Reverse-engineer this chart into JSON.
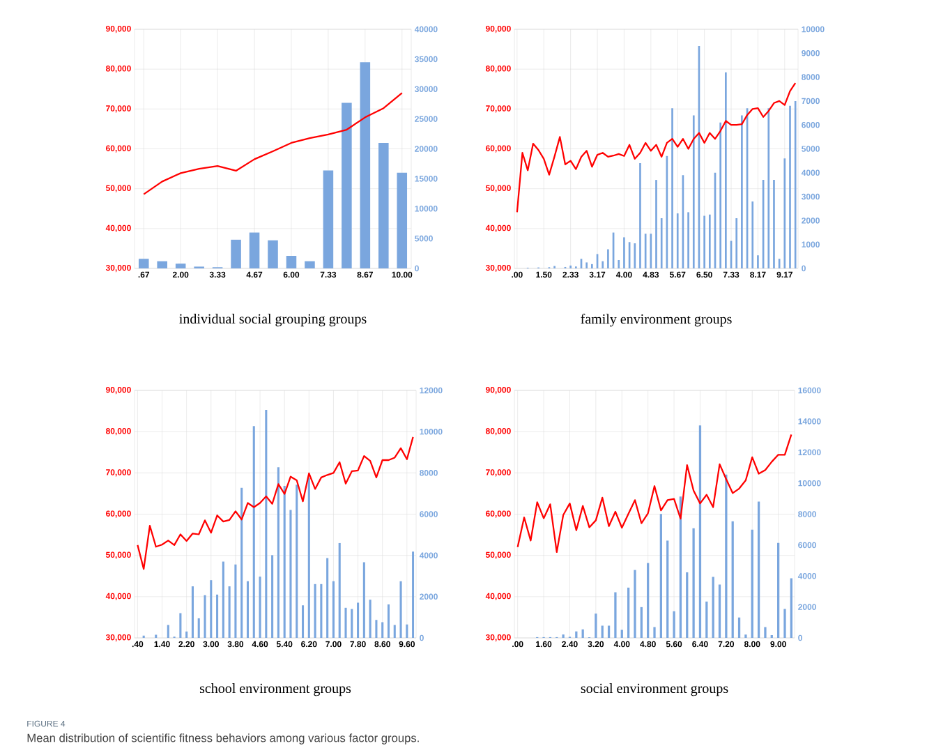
{
  "chart_data": [
    {
      "type": "bar",
      "xlabel": "individual social grouping groups",
      "grid": true,
      "categories": [
        ".67",
        null,
        "2.00",
        null,
        "3.33",
        null,
        "4.67",
        null,
        "6.00",
        null,
        "7.33",
        null,
        "8.67",
        null,
        "10.00"
      ],
      "ylim": [
        30000,
        90000
      ],
      "yticks": [
        {
          "value": 30000,
          "label": "30,000"
        },
        {
          "value": 40000,
          "label": "40,000"
        },
        {
          "value": 50000,
          "label": "50,000"
        },
        {
          "value": 60000,
          "label": "60,000"
        },
        {
          "value": 70000,
          "label": "70,000"
        },
        {
          "value": 80000,
          "label": "80,000"
        },
        {
          "value": 90000,
          "label": "90,000"
        }
      ],
      "y2lim": [
        0,
        40000
      ],
      "y2ticks": [
        0,
        5000,
        10000,
        15000,
        20000,
        25000,
        30000,
        35000,
        40000
      ],
      "series": [
        {
          "axis": "y2",
          "color": "#7aa6de",
          "values": [
            1600,
            1200,
            800,
            300,
            200,
            4800,
            6000,
            4700,
            2100,
            1200,
            16400,
            27700,
            34500,
            21000,
            16000
          ]
        },
        {
          "type": "line",
          "color": "#ff0000",
          "values": [
            48600,
            51800,
            53900,
            55000,
            55700,
            54500,
            57400,
            59400,
            61500,
            62700,
            63600,
            64800,
            67900,
            70200,
            74000
          ]
        }
      ]
    },
    {
      "type": "bar",
      "xlabel": "family environment groups",
      "grid": true,
      "categories": [
        ".00",
        null,
        null,
        null,
        null,
        "1.50",
        null,
        null,
        null,
        null,
        "2.33",
        null,
        null,
        null,
        null,
        "3.17",
        null,
        null,
        null,
        null,
        "4.00",
        null,
        null,
        null,
        null,
        "4.83",
        null,
        null,
        null,
        null,
        "5.67",
        null,
        null,
        null,
        null,
        "6.50",
        null,
        null,
        null,
        null,
        "7.33",
        null,
        null,
        null,
        null,
        "8.17",
        null,
        null,
        null,
        null,
        "9.17",
        null,
        null
      ],
      "ylim": [
        30000,
        90000
      ],
      "yticks": [
        {
          "value": 30000,
          "label": "30,000"
        },
        {
          "value": 40000,
          "label": "40,000"
        },
        {
          "value": 50000,
          "label": "50,000"
        },
        {
          "value": 60000,
          "label": "60,000"
        },
        {
          "value": 70000,
          "label": "70,000"
        },
        {
          "value": 80000,
          "label": "80,000"
        },
        {
          "value": 90000,
          "label": "90,000"
        }
      ],
      "y2lim": [
        0,
        10000
      ],
      "y2ticks": [
        0,
        1000,
        2000,
        3000,
        4000,
        5000,
        6000,
        7000,
        8000,
        9000,
        10000
      ],
      "series": [
        {
          "axis": "y2",
          "color": "#7aa6de",
          "values": [
            0,
            0,
            30,
            0,
            40,
            0,
            50,
            100,
            0,
            60,
            120,
            80,
            400,
            250,
            180,
            600,
            300,
            800,
            1500,
            350,
            1300,
            1100,
            1050,
            4400,
            1450,
            1450,
            3700,
            2100,
            4700,
            6700,
            2300,
            3900,
            2350,
            6400,
            9300,
            2200,
            2250,
            4000,
            6100,
            8200,
            1150,
            2100,
            6400,
            6700,
            2800,
            550,
            3700,
            6700,
            3700,
            400,
            4600,
            6800,
            7000
          ]
        },
        {
          "type": "line",
          "color": "#ff0000",
          "values": [
            44100,
            59000,
            54600,
            61300,
            59700,
            57500,
            53500,
            58100,
            63000,
            56100,
            57000,
            54900,
            58000,
            59500,
            55500,
            58500,
            59000,
            58000,
            58300,
            58700,
            58200,
            61000,
            57500,
            59000,
            61500,
            59500,
            61000,
            58000,
            61500,
            62500,
            60500,
            62500,
            60000,
            62500,
            64000,
            61500,
            64000,
            62500,
            64500,
            67000,
            66000,
            66000,
            66200,
            68500,
            70000,
            70200,
            68000,
            69500,
            71500,
            72000,
            71000,
            74500,
            76500
          ]
        }
      ]
    },
    {
      "type": "bar",
      "xlabel": "school environment groups",
      "grid": true,
      "categories": [
        ".40",
        null,
        null,
        null,
        "1.40",
        null,
        null,
        null,
        "2.20",
        null,
        null,
        null,
        "3.00",
        null,
        null,
        null,
        "3.80",
        null,
        null,
        null,
        "4.60",
        null,
        null,
        null,
        "5.40",
        null,
        null,
        null,
        "6.20",
        null,
        null,
        null,
        "7.00",
        null,
        null,
        null,
        "7.80",
        null,
        null,
        null,
        "8.60",
        null,
        null,
        null,
        "9.60",
        null
      ],
      "ylim": [
        30000,
        90000
      ],
      "yticks": [
        {
          "value": 30000,
          "label": "30,000"
        },
        {
          "value": 40000,
          "label": "40,000"
        },
        {
          "value": 50000,
          "label": "50,000"
        },
        {
          "value": 60000,
          "label": "60,000"
        },
        {
          "value": 70000,
          "label": "70,000"
        },
        {
          "value": 80000,
          "label": "80,000"
        },
        {
          "value": 90000,
          "label": "90,000"
        }
      ],
      "y2lim": [
        0,
        12000
      ],
      "y2ticks": [
        0,
        2000,
        4000,
        6000,
        8000,
        10000,
        12000
      ],
      "series": [
        {
          "axis": "y2",
          "color": "#7aa6de",
          "values": [
            0,
            110,
            0,
            150,
            0,
            630,
            60,
            1200,
            310,
            2500,
            950,
            2070,
            2800,
            2100,
            3700,
            2500,
            3560,
            7280,
            2750,
            10270,
            2970,
            11050,
            4010,
            8270,
            7370,
            6200,
            7430,
            1580,
            7760,
            2610,
            2610,
            3870,
            2750,
            4600,
            1460,
            1400,
            1710,
            3670,
            1850,
            870,
            760,
            1620,
            630,
            2750,
            650,
            4180
          ]
        },
        {
          "type": "line",
          "color": "#ff0000",
          "values": [
            52500,
            46700,
            57200,
            52100,
            52600,
            53600,
            52500,
            55100,
            53500,
            55300,
            55100,
            58500,
            55500,
            59700,
            58200,
            58600,
            60700,
            58700,
            62700,
            61700,
            62700,
            64300,
            62500,
            67300,
            64900,
            69100,
            68200,
            63100,
            69900,
            66100,
            68900,
            69500,
            70000,
            72600,
            67400,
            70400,
            70600,
            74100,
            72900,
            68900,
            73100,
            73100,
            73700,
            76000,
            73300,
            78700
          ]
        }
      ]
    },
    {
      "type": "bar",
      "xlabel": "social environment groups",
      "grid": true,
      "categories": [
        ".00",
        null,
        null,
        null,
        "1.60",
        null,
        null,
        null,
        "2.40",
        null,
        null,
        null,
        "3.20",
        null,
        null,
        null,
        "4.00",
        null,
        null,
        null,
        "4.80",
        null,
        null,
        null,
        "5.60",
        null,
        null,
        null,
        "6.40",
        null,
        null,
        null,
        "7.20",
        null,
        null,
        null,
        "8.00",
        null,
        null,
        null,
        "9.00",
        null,
        null
      ],
      "ylim": [
        30000,
        90000
      ],
      "yticks": [
        {
          "value": 30000,
          "label": "30,000"
        },
        {
          "value": 40000,
          "label": "40,000"
        },
        {
          "value": 50000,
          "label": "50,000"
        },
        {
          "value": 60000,
          "label": "60,000"
        },
        {
          "value": 70000,
          "label": "70,000"
        },
        {
          "value": 80000,
          "label": "80,000"
        },
        {
          "value": 90000,
          "label": "90,000"
        }
      ],
      "y2lim": [
        0,
        16000
      ],
      "y2ticks": [
        0,
        2000,
        4000,
        6000,
        8000,
        10000,
        12000,
        14000,
        16000
      ],
      "annotations": [
        "FIGURE 4",
        "Mean distribution of scientific fitness behaviors among various factor groups."
      ],
      "series": [
        {
          "axis": "y2",
          "color": "#7aa6de",
          "values": [
            0,
            0,
            null,
            50,
            50,
            50,
            50,
            220,
            70,
            420,
            550,
            40,
            1570,
            790,
            790,
            2950,
            520,
            3250,
            4390,
            1990,
            4840,
            700,
            8010,
            6290,
            1720,
            9140,
            4240,
            7090,
            13740,
            2350,
            3940,
            3450,
            10560,
            7540,
            1320,
            220,
            7000,
            8810,
            700,
            180,
            6140,
            1870,
            3850
          ]
        },
        {
          "type": "line",
          "color": "#ff0000",
          "values": [
            52000,
            59200,
            53600,
            62900,
            59000,
            62400,
            50800,
            59800,
            62600,
            56100,
            62000,
            56800,
            58500,
            64000,
            57100,
            60600,
            56700,
            60100,
            63400,
            57800,
            60200,
            66800,
            60900,
            63400,
            63700,
            58900,
            71900,
            65700,
            62600,
            64700,
            61700,
            72100,
            68500,
            65100,
            66200,
            68200,
            73800,
            69800,
            70700,
            72700,
            74400,
            74400,
            79300
          ]
        }
      ]
    }
  ]
}
